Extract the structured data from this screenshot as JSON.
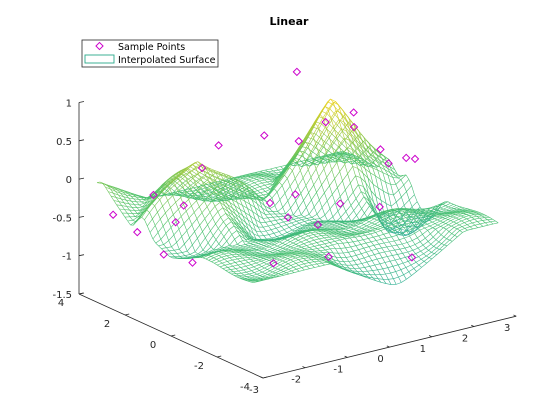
{
  "chart_data": {
    "type": "surface",
    "title": "Linear",
    "xlabel": "",
    "ylabel": "",
    "zlabel": "",
    "xlim": [
      -3,
      3
    ],
    "ylim": [
      -4,
      4
    ],
    "zlim": [
      -1.5,
      1
    ],
    "x_ticks": [
      "-3",
      "-2",
      "-1",
      "0",
      "1",
      "2",
      "3"
    ],
    "y_ticks": [
      "-4",
      "-2",
      "0",
      "2",
      "4"
    ],
    "z_ticks": [
      "-1.5",
      "-1",
      "-0.5",
      "0",
      "0.5",
      "1"
    ],
    "legend": {
      "placement": "top-left",
      "entries": [
        "Sample Points",
        "Interpolated Surface"
      ]
    },
    "colors": {
      "markers": "#cc00cc",
      "surface_low": "#1fa3b8",
      "surface_mid": "#4cc26b",
      "surface_high": "#f2d21a",
      "axes": "#262626"
    },
    "grid": false,
    "surface_peaks": [
      {
        "x": -1.6,
        "y": 1.4,
        "z": 0.5
      },
      {
        "x": 1.6,
        "y": 1.4,
        "z": 0.8
      }
    ],
    "sample_points": [
      {
        "x": -2.9,
        "y": 2.7,
        "z": -0.3
      },
      {
        "x": -2.6,
        "y": 2.2,
        "z": -0.5
      },
      {
        "x": -2.3,
        "y": 1.6,
        "z": -0.75
      },
      {
        "x": -2.0,
        "y": 0.9,
        "z": -0.8
      },
      {
        "x": -1.8,
        "y": 2.0,
        "z": -0.45
      },
      {
        "x": -2.0,
        "y": 2.6,
        "z": -0.15
      },
      {
        "x": -1.5,
        "y": 2.2,
        "z": -0.3
      },
      {
        "x": -1.5,
        "y": 1.4,
        "z": 0.3
      },
      {
        "x": -1.0,
        "y": 1.6,
        "z": 0.5
      },
      {
        "x": -0.6,
        "y": 0.1,
        "z": -0.1
      },
      {
        "x": -0.9,
        "y": -0.6,
        "z": -0.75
      },
      {
        "x": 0.1,
        "y": 0.6,
        "z": -0.45
      },
      {
        "x": 0.3,
        "y": 2.0,
        "z": 0.4
      },
      {
        "x": 0.6,
        "y": 1.2,
        "z": -0.3
      },
      {
        "x": 0.3,
        "y": -0.8,
        "z": -0.8
      },
      {
        "x": 0.7,
        "y": 0.4,
        "z": -0.6
      },
      {
        "x": 0.9,
        "y": 1.6,
        "z": 0.3
      },
      {
        "x": 1.4,
        "y": 2.6,
        "z": 1.0
      },
      {
        "x": 1.7,
        "y": 1.9,
        "z": 0.4
      },
      {
        "x": 1.5,
        "y": 0.9,
        "z": -0.5
      },
      {
        "x": 2.1,
        "y": 1.4,
        "z": 0.35
      },
      {
        "x": 2.2,
        "y": 1.6,
        "z": 0.5
      },
      {
        "x": 2.4,
        "y": 0.8,
        "z": 0.1
      },
      {
        "x": 2.0,
        "y": 0.1,
        "z": -0.5
      },
      {
        "x": 2.6,
        "y": -0.2,
        "z": -1.2
      },
      {
        "x": 2.9,
        "y": 0.6,
        "z": -0.05
      },
      {
        "x": 2.7,
        "y": 1.0,
        "z": -0.15
      },
      {
        "x": 3.0,
        "y": 0.4,
        "z": -0.05
      }
    ]
  }
}
